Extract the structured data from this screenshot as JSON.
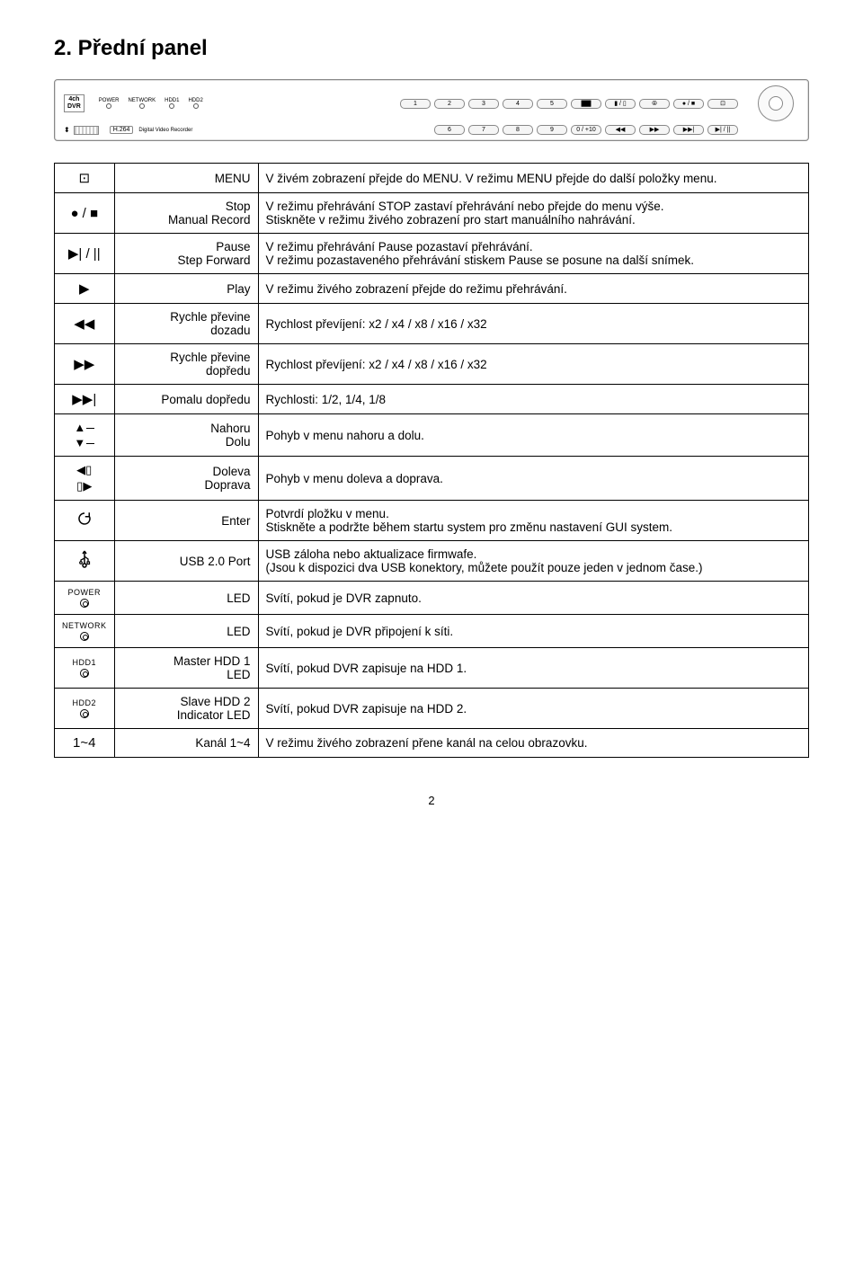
{
  "heading": "2. Přední panel",
  "device": {
    "badge_line1": "4ch",
    "badge_line2": "DVR",
    "leds": [
      "POWER",
      "NETWORK",
      "HDD1",
      "HDD2"
    ],
    "top_buttons": [
      "1",
      "2",
      "3",
      "4",
      "5",
      "▇▇",
      "▮ / ▯",
      "⦾",
      "● / ■",
      "⊡"
    ],
    "h264": "H.264",
    "h264_sub": "Digital Video Recorder",
    "bot_buttons": [
      "6",
      "7",
      "8",
      "9",
      "0 / +10",
      "◀◀",
      "▶▶",
      "▶▶|",
      "▶| / ||"
    ]
  },
  "rows": [
    {
      "icon": "⊡",
      "label": "MENU",
      "desc": "V živém zobrazení přejde do MENU. V režimu MENU přejde do další položky menu."
    },
    {
      "icon": "● / ■",
      "label": "Stop\nManual Record",
      "desc": "V režimu přehrávání STOP zastaví přehrávání nebo přejde do menu výše.\nStiskněte v režimu živého zobrazení pro start manuálního nahrávání."
    },
    {
      "icon": "▶| / ||",
      "label": "Pause\nStep Forward",
      "desc": "V režimu přehrávání Pause pozastaví přehrávání.\nV režimu pozastaveného přehrávání stiskem Pause se posune na další snímek."
    },
    {
      "icon": "▶",
      "label": "Play",
      "desc": "V režimu živého zobrazení přejde do režimu přehrávání."
    },
    {
      "icon": "◀◀",
      "label": "Rychle převine\ndozadu",
      "desc": "Rychlost převíjení: x2 / x4 / x8 / x16 / x32"
    },
    {
      "icon": "▶▶",
      "label": "Rychle převine\ndopředu",
      "desc": "Rychlost převíjení: x2 / x4 / x8 / x16 / x32"
    },
    {
      "icon": "▶▶|",
      "label": "Pomalu dopředu",
      "desc": "Rychlosti: 1/2, 1/4, 1/8"
    },
    {
      "icon": "updown",
      "label": "Nahoru\nDolu",
      "desc": "Pohyb v menu nahoru a dolu."
    },
    {
      "icon": "leftright",
      "label": "Doleva\nDoprava",
      "desc": "Pohyb v menu doleva a doprava."
    },
    {
      "icon": "refresh",
      "label": "Enter",
      "desc": "Potvrdí pložku v menu.\nStiskněte a podržte během startu system pro změnu nastavení GUI system."
    },
    {
      "icon": "usb",
      "label": "USB 2.0 Port",
      "desc": "USB záloha nebo aktualizace firmwafe.\n(Jsou k dispozici dva USB konektory, můžete použít pouze jeden v jednom čase.)"
    },
    {
      "icon": "led",
      "icon_label": "POWER",
      "label": "LED",
      "desc": "Svítí, pokud je DVR zapnuto."
    },
    {
      "icon": "led",
      "icon_label": "NETWORK",
      "label": "LED",
      "desc": "Svítí, pokud je DVR připojení k síti."
    },
    {
      "icon": "led",
      "icon_label": "HDD1",
      "label": "Master HDD 1\nLED",
      "desc": "Svítí, pokud DVR zapisuje na HDD 1."
    },
    {
      "icon": "led",
      "icon_label": "HDD2",
      "label": "Slave HDD 2\nIndicator LED",
      "desc": "Svítí, pokud DVR zapisuje na HDD 2."
    },
    {
      "icon": "text",
      "icon_label": "1~4",
      "label": "Kanál 1~4",
      "desc": "V režimu živého zobrazení přene kanál na celou obrazovku."
    }
  ],
  "page_number": "2"
}
